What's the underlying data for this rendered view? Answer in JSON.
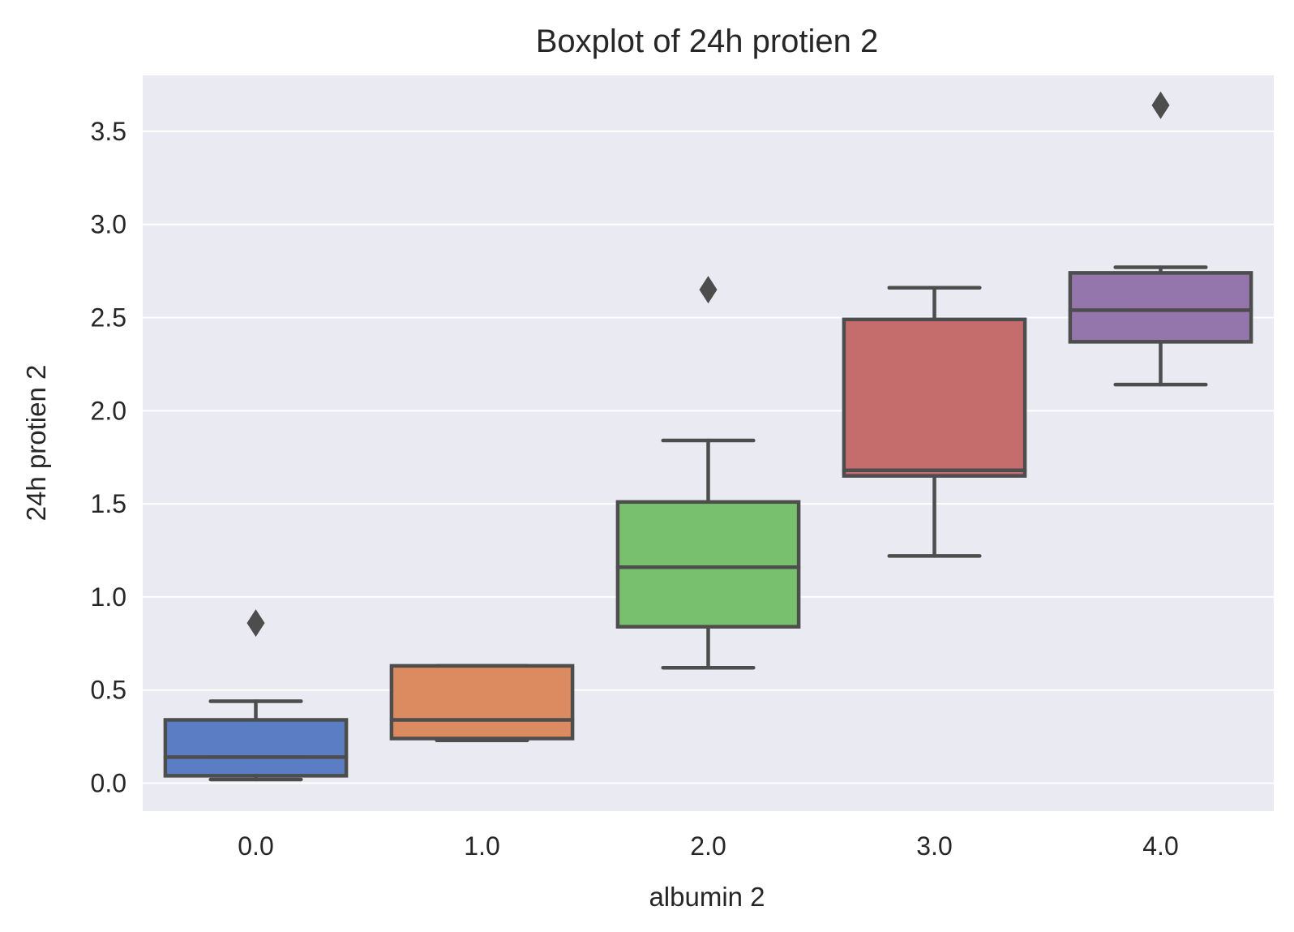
{
  "chart_data": {
    "type": "boxplot",
    "title": "Boxplot of 24h protien 2",
    "xlabel": "albumin 2",
    "ylabel": "24h protien 2",
    "categories": [
      "0.0",
      "1.0",
      "2.0",
      "3.0",
      "4.0"
    ],
    "ylim": [
      -0.15,
      3.8
    ],
    "yticks": [
      0.0,
      0.5,
      1.0,
      1.5,
      2.0,
      2.5,
      3.0,
      3.5
    ],
    "ytick_labels": [
      "0.0",
      "0.5",
      "1.0",
      "1.5",
      "2.0",
      "2.5",
      "3.0",
      "3.5"
    ],
    "grid": true,
    "background": "#eaeaf2",
    "boxes": [
      {
        "category": "0.0",
        "whisker_low": 0.02,
        "q1": 0.04,
        "median": 0.14,
        "q3": 0.34,
        "whisker_high": 0.44,
        "outliers": [
          0.86
        ],
        "color": "#5a7dc3"
      },
      {
        "category": "1.0",
        "whisker_low": 0.23,
        "q1": 0.24,
        "median": 0.34,
        "q3": 0.63,
        "whisker_high": 0.63,
        "outliers": [],
        "color": "#db8b5f"
      },
      {
        "category": "2.0",
        "whisker_low": 0.62,
        "q1": 0.84,
        "median": 1.16,
        "q3": 1.51,
        "whisker_high": 1.84,
        "outliers": [
          2.65
        ],
        "color": "#78c06d"
      },
      {
        "category": "3.0",
        "whisker_low": 1.22,
        "q1": 1.65,
        "median": 1.68,
        "q3": 2.49,
        "whisker_high": 2.66,
        "outliers": [],
        "color": "#c56d6d"
      },
      {
        "category": "4.0",
        "whisker_low": 2.14,
        "q1": 2.37,
        "median": 2.54,
        "q3": 2.74,
        "whisker_high": 2.77,
        "outliers": [
          3.64
        ],
        "color": "#9576ac"
      }
    ]
  }
}
